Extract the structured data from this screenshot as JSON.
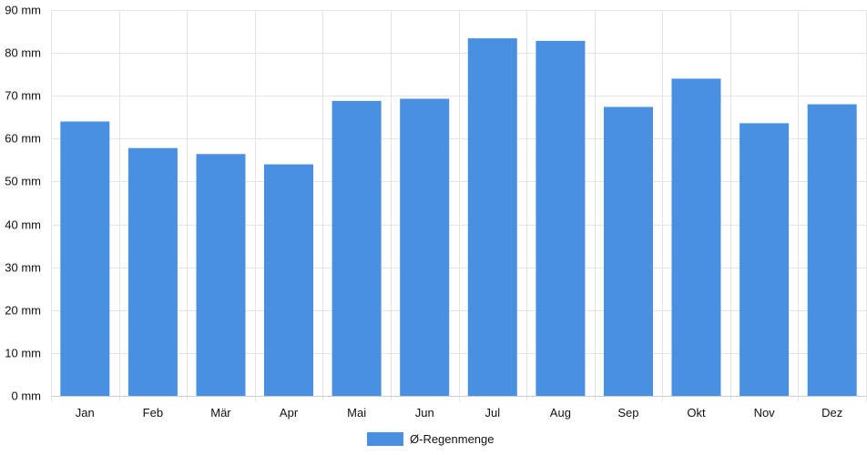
{
  "chart_data": {
    "type": "bar",
    "categories": [
      "Jan",
      "Feb",
      "Mär",
      "Apr",
      "Mai",
      "Jun",
      "Jul",
      "Aug",
      "Sep",
      "Okt",
      "Nov",
      "Dez"
    ],
    "series": [
      {
        "name": "Ø-Regenmenge",
        "values": [
          64.0,
          57.8,
          56.4,
          54.0,
          68.8,
          69.3,
          83.4,
          82.8,
          67.4,
          74.0,
          63.6,
          68.0
        ],
        "color": "#4a90e2"
      }
    ],
    "ylim": [
      0,
      90
    ],
    "y_ticks": [
      0,
      10,
      20,
      30,
      40,
      50,
      60,
      70,
      80,
      90
    ],
    "y_tick_labels": [
      "0 mm",
      "10 mm",
      "20 mm",
      "30 mm",
      "40 mm",
      "50 mm",
      "60 mm",
      "70 mm",
      "80 mm",
      "90 mm"
    ],
    "grid": true,
    "legend_position": "bottom-center",
    "colors": {
      "bar": "#4a90e2",
      "grid": "#e5e5e5",
      "axis": "#cccccc",
      "text": "#111111"
    }
  }
}
